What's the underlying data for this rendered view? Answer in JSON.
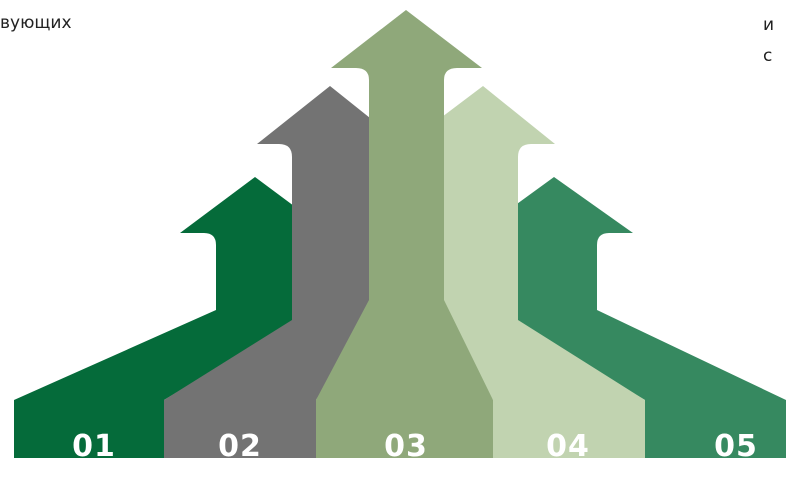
{
  "text_fragments": {
    "left": "вующих",
    "right_line1": "и",
    "right_line2": "с"
  },
  "arrows": [
    {
      "label": "01",
      "color": "#056b3a"
    },
    {
      "label": "02",
      "color": "#737373"
    },
    {
      "label": "03",
      "color": "#8fa87a"
    },
    {
      "label": "04",
      "color": "#c1d3b0"
    },
    {
      "label": "05",
      "color": "#368960"
    }
  ]
}
